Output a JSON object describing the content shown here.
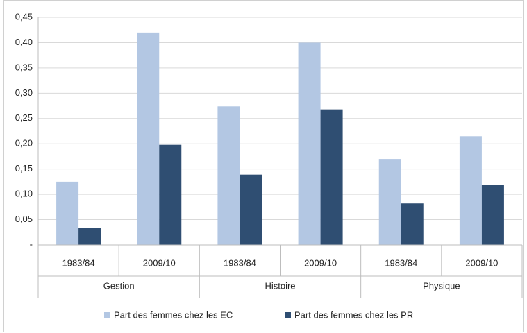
{
  "chart_data": {
    "type": "bar",
    "categories": [
      "1983/84",
      "2009/10",
      "1983/84",
      "2009/10",
      "1983/84",
      "2009/10"
    ],
    "groups": [
      "Gestion",
      "Histoire",
      "Physique"
    ],
    "series": [
      {
        "name": "Part des femmes chez les EC",
        "color": "#b3c7e3",
        "values": [
          0.125,
          0.42,
          0.274,
          0.4,
          0.17,
          0.215
        ]
      },
      {
        "name": "Part des femmes chez les PR",
        "color": "#2f4e72",
        "values": [
          0.034,
          0.198,
          0.139,
          0.268,
          0.082,
          0.119
        ]
      }
    ],
    "ylim": [
      0,
      0.45
    ],
    "yticks": [
      {
        "value": 0,
        "label": "-"
      },
      {
        "value": 0.05,
        "label": "0,05"
      },
      {
        "value": 0.1,
        "label": "0,10"
      },
      {
        "value": 0.15,
        "label": "0,15"
      },
      {
        "value": 0.2,
        "label": "0,20"
      },
      {
        "value": 0.25,
        "label": "0,25"
      },
      {
        "value": 0.3,
        "label": "0,30"
      },
      {
        "value": 0.35,
        "label": "0,35"
      },
      {
        "value": 0.4,
        "label": "0,40"
      },
      {
        "value": 0.45,
        "label": "0,45"
      }
    ],
    "grid": true,
    "legend": "bottom"
  }
}
